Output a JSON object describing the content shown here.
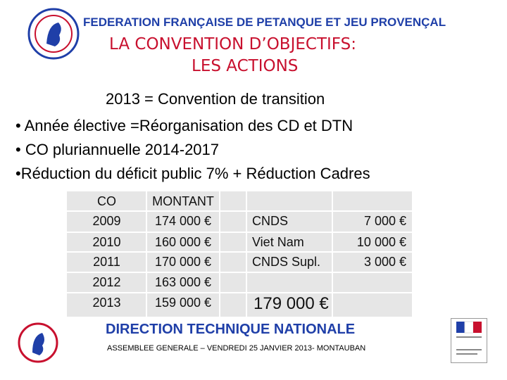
{
  "header": {
    "federation": "FEDERATION FRANÇAISE DE PETANQUE ET JEU PROVENÇAL"
  },
  "title": {
    "lines": [
      "LA CONVENTION D’OBJECTIFS:",
      "LES ACTIONS"
    ]
  },
  "body": {
    "lines": [
      "2013 = Convention de transition",
      "• Année élective =Réorganisation des CD et DTN",
      "• CO pluriannuelle 2014-2017",
      "•Réduction du déficit public 7% + Réduction Cadres"
    ]
  },
  "table": {
    "header": [
      "CO",
      "MONTANT"
    ],
    "rows": [
      [
        "2009",
        "174 000 €",
        "CNDS",
        "7 000 €"
      ],
      [
        "2010",
        "160 000 €",
        "Viet Nam",
        "10 000 €"
      ],
      [
        "2011",
        "170 000 €",
        "CNDS Supl.",
        "3 000 €"
      ],
      [
        "2012",
        "163 000 €"
      ],
      [
        "2013",
        "159 000 €"
      ]
    ],
    "total": "179 000 €"
  },
  "footer": {
    "direction": "DIRECTION TECHNIQUE NATIONALE",
    "event": "ASSEMBLEE GENERALE – VENDREDI 25 JANVIER 2013- MONTAUBAN"
  }
}
